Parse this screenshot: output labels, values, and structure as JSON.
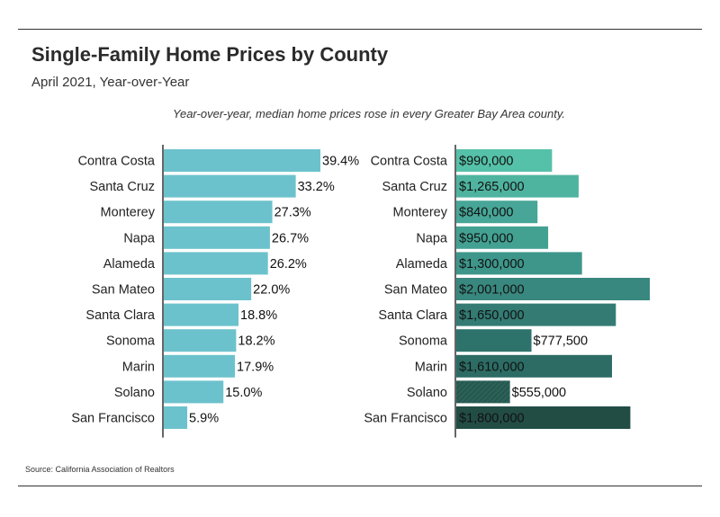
{
  "title": "Single-Family Home Prices by County",
  "subtitle": "April 2021, Year-over-Year",
  "annotation": "Year-over-year, median home prices rose in every Greater Bay Area county.",
  "source": "Source:  California Association of Realtors",
  "chart_data": [
    {
      "type": "bar",
      "orientation": "horizontal",
      "title": "",
      "categories": [
        "Contra Costa",
        "Santa Cruz",
        "Monterey",
        "Napa",
        "Alameda",
        "San Mateo",
        "Santa Clara",
        "Sonoma",
        "Marin",
        "Solano",
        "San Francisco"
      ],
      "values": [
        39.4,
        33.2,
        27.3,
        26.7,
        26.2,
        22.0,
        18.8,
        18.2,
        17.9,
        15.0,
        5.9
      ],
      "labels": [
        "39.4%",
        "33.2%",
        "27.3%",
        "26.7%",
        "26.2%",
        "22.0%",
        "18.8%",
        "18.2%",
        "17.9%",
        "15.0%",
        "5.9%"
      ],
      "unit": "%",
      "color": "#6cc2cc"
    },
    {
      "type": "bar",
      "orientation": "horizontal",
      "title": "",
      "categories": [
        "Contra Costa",
        "Santa Cruz",
        "Monterey",
        "Napa",
        "Alameda",
        "San Mateo",
        "Santa Clara",
        "Sonoma",
        "Marin",
        "Solano",
        "San Francisco"
      ],
      "values": [
        990000,
        1265000,
        840000,
        950000,
        1300000,
        2001000,
        1650000,
        777500,
        1610000,
        555000,
        1800000
      ],
      "labels": [
        "$990,000",
        "$1,265,000",
        "$840,000",
        "$950,000",
        "$1,300,000",
        "$2,001,000",
        "$1,650,000",
        "$777,500",
        "$1,610,000",
        "$555,000",
        "$1,800,000"
      ],
      "colors": [
        "#55c1a8",
        "#4fb49f",
        "#47a697",
        "#43a192",
        "#3e968b",
        "#39887f",
        "#337b73",
        "#2e736b",
        "#2c6c64",
        "#295f57",
        "#224d45"
      ]
    }
  ]
}
